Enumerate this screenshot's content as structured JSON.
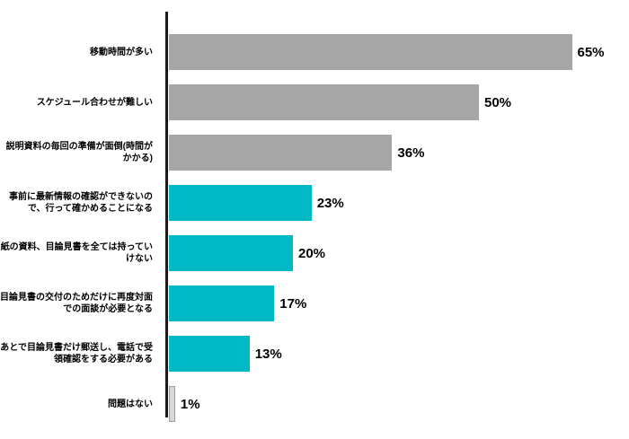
{
  "chart_data": {
    "type": "bar",
    "orientation": "horizontal",
    "title": "",
    "xlabel": "",
    "ylabel": "",
    "xlim": [
      0,
      100
    ],
    "unit": "%",
    "grid": false,
    "legend": "none",
    "categories": [
      "移動時間が多い",
      "スケジュール合わせが難しい",
      "説明資料の毎回の準備が面倒(時間がかかる)",
      "事前に最新情報の確認ができないので、行って確かめることになる",
      "紙の資料、目論見書を全ては持っていけない",
      "目論見書の交付のためだけに再度対面での面談が必要となる",
      "あとで目論見書だけ郵送し、電話で受領確認をする必要がある",
      "問題はない"
    ],
    "values": [
      65,
      50,
      36,
      23,
      20,
      17,
      13,
      1
    ],
    "value_labels": [
      "65%",
      "50%",
      "36%",
      "23%",
      "20%",
      "17%",
      "13%",
      "1%"
    ],
    "bar_colors": [
      "#a6a6a6",
      "#a6a6a6",
      "#a6a6a6",
      "#00b9c5",
      "#00b9c5",
      "#00b9c5",
      "#00b9c5",
      "#d9d9d9"
    ],
    "bar_borders": [
      "",
      "",
      "",
      "",
      "",
      "",
      "",
      "#9b9b9b"
    ],
    "axis_color": "#1a1a1a",
    "text_color": "#000000",
    "pixels_per_percent": 6.9
  }
}
